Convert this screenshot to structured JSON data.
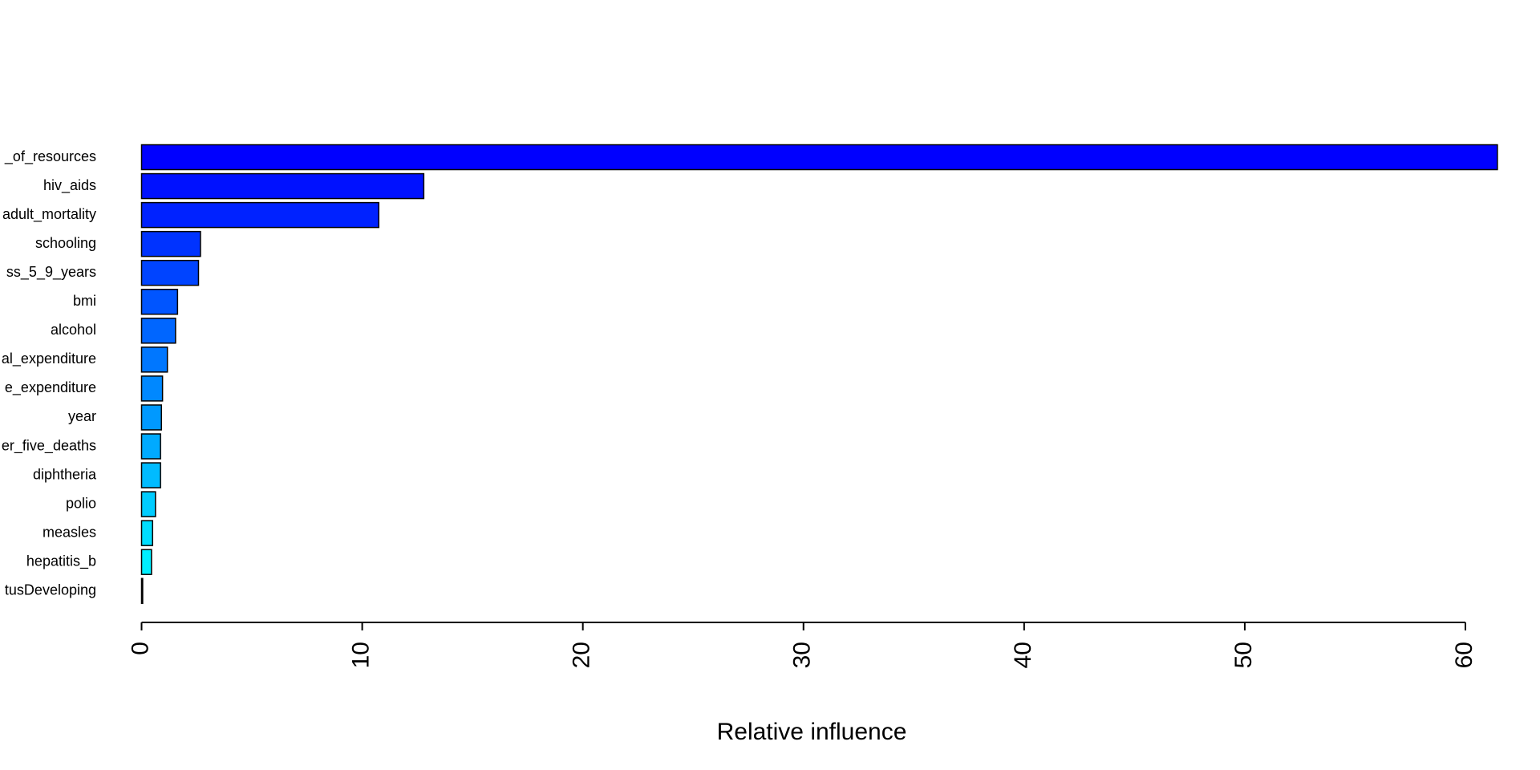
{
  "chart_data": {
    "type": "hbar",
    "xlabel": "Relative influence",
    "categories": [
      "_of_resources",
      "hiv_aids",
      "adult_mortality",
      "schooling",
      "ss_5_9_years",
      "bmi",
      "alcohol",
      "al_expenditure",
      "e_expenditure",
      "year",
      "er_five_deaths",
      "diphtheria",
      "polio",
      "measles",
      "hepatitis_b",
      "tusDeveloping"
    ],
    "values": [
      61.45,
      12.79,
      10.75,
      2.67,
      2.58,
      1.63,
      1.54,
      1.17,
      0.95,
      0.9,
      0.86,
      0.86,
      0.63,
      0.5,
      0.45,
      0.05
    ],
    "colors": [
      "#0000FF",
      "#0011FF",
      "#0022FF",
      "#0033FF",
      "#0044FF",
      "#0055FF",
      "#0066FF",
      "#0077FF",
      "#0088FF",
      "#0099FF",
      "#00AAFF",
      "#00BBFF",
      "#00CCFF",
      "#00DDFF",
      "#00EEFF",
      "#00FFFF"
    ],
    "xlim": [
      0,
      60
    ],
    "xticks": [
      0,
      10,
      20,
      30,
      40,
      50,
      60
    ]
  }
}
